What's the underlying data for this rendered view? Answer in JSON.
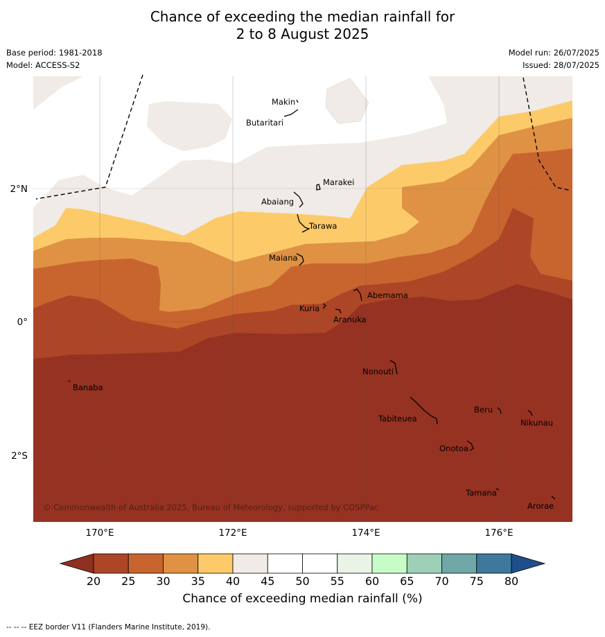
{
  "title_line1": "Chance of exceeding the median rainfall for",
  "title_line2": "2 to 8 August 2025",
  "meta": {
    "base_period": "Base period: 1981-2018",
    "model": "Model: ACCESS-S2",
    "model_run": "Model run: 26/07/2025",
    "issued": "Issued: 28/07/2025"
  },
  "copyright": "© Commonwealth of Australia 2025, Bureau of Meteorology, supported by COSPPac",
  "footer": "--  --  -- EEZ border V11 (Flanders Marine Institute, 2019).",
  "colorbar": {
    "label": "Chance of exceeding median rainfall (%)",
    "ticks": [
      "20",
      "25",
      "30",
      "35",
      "40",
      "45",
      "50",
      "55",
      "60",
      "65",
      "70",
      "75",
      "80"
    ],
    "colors": [
      "#ac4627",
      "#c8652f",
      "#df9243",
      "#fdca6a",
      "#f0ebe6",
      "#ffffff",
      "#ffffff",
      "#e9f3e6",
      "#c8fcc7",
      "#9ed0b8",
      "#6fa8a6",
      "#3e789c"
    ],
    "under_color": "#8f3020",
    "over_color": "#1f4e8a"
  },
  "axes": {
    "x_ticks": [
      "170°E",
      "172°E",
      "174°E",
      "176°E"
    ],
    "y_ticks": [
      "2°N",
      "0°",
      "2°S"
    ]
  },
  "places": [
    "Makin",
    "Butaritari",
    "Marakei",
    "Abaiang",
    "Tarawa",
    "Maiana",
    "Abemama",
    "Kuria",
    "Aranuka",
    "Banaba",
    "Nonouti",
    "Beru",
    "Tabiteuea",
    "Nikunau",
    "Onotoa",
    "Tamana",
    "Arorae"
  ],
  "palette": {
    "band_20": "#963222",
    "band_20_25": "#ac4627",
    "band_25_30": "#c8652f",
    "band_30_35": "#df9243",
    "band_35_40": "#fdca6a",
    "band_40_45": "#f0ebe6"
  }
}
